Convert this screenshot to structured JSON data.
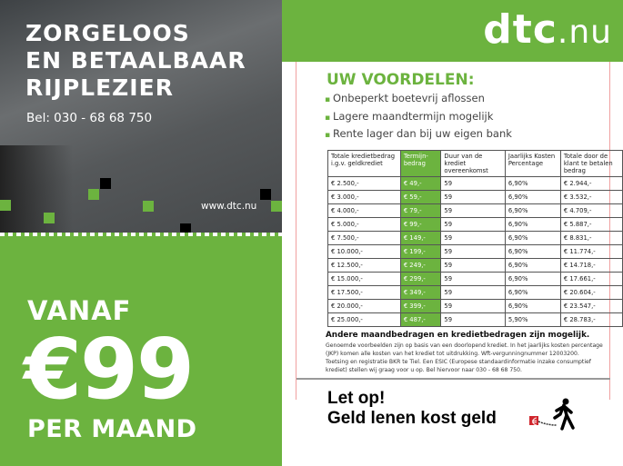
{
  "left": {
    "headline": [
      "ZORGELOOS",
      "EN BETAALBAAR",
      "RIJPLEZIER"
    ],
    "phone": "Bel: 030 - 68 68 750",
    "website": "www.dtc.nu",
    "promo": {
      "from": "VANAF",
      "price": "€99",
      "per": "PER MAAND"
    }
  },
  "right": {
    "logo": {
      "main": "dtc",
      "suffix": ".nu"
    },
    "benefits_title": "UW VOORDELEN:",
    "benefits": [
      "Onbeperkt boetevrij aflossen",
      "Lagere maandtermijn mogelijk",
      "Rente lager dan bij uw eigen bank"
    ],
    "table": {
      "headers": [
        "Totale kredietbedrag i.g.v. geldkrediet",
        "Termijn-bedrag",
        "Duur van de krediet overeenkomst",
        "Jaarlijks Kosten Percentage",
        "Totale door de klant te betalen bedrag"
      ],
      "rows": [
        [
          "€  2.500,-",
          "€  49,-",
          "59",
          "6,90%",
          "€  2.944,-"
        ],
        [
          "€  3.000,-",
          "€  59,-",
          "59",
          "6,90%",
          "€  3.532,-"
        ],
        [
          "€  4.000,-",
          "€  79,-",
          "59",
          "6,90%",
          "€  4.709,-"
        ],
        [
          "€  5.000,-",
          "€  99,-",
          "59",
          "6,90%",
          "€  5.887,-"
        ],
        [
          "€  7.500,-",
          "€ 149,-",
          "59",
          "6,90%",
          "€  8.831,-"
        ],
        [
          "€ 10.000,-",
          "€ 199,-",
          "59",
          "6,90%",
          "€ 11.774,-"
        ],
        [
          "€ 12.500,-",
          "€ 249,-",
          "59",
          "6,90%",
          "€ 14.718,-"
        ],
        [
          "€ 15.000,-",
          "€ 299,-",
          "59",
          "6,90%",
          "€ 17.661,-"
        ],
        [
          "€ 17.500,-",
          "€ 349,-",
          "59",
          "6,90%",
          "€ 20.604,-"
        ],
        [
          "€ 20.000,-",
          "€ 399,-",
          "59",
          "6,90%",
          "€ 23.547,-"
        ],
        [
          "€ 25.000,-",
          "€ 487,-",
          "59",
          "5,90%",
          "€ 28.783,-"
        ]
      ]
    },
    "other_amounts": "Andere maandbedragen en kredietbedragen zijn mogelijk.",
    "fine_print": "Genoemde voorbeelden zijn op basis van een doorlopend krediet. In het jaarlijks kosten percentage (JKP) komen alle kosten van het krediet tot uitdrukking. Wft-vergunningnummer 12003200. Toetsing en registratie BKR te Tiel. Een ESIC (Europese standaardinformatie inzake consumptief krediet) stellen wij graag voor u op. Bel hiervoor naar 030 - 68 68 750.",
    "warning": [
      "Let op!",
      "Geld lenen kost geld"
    ],
    "warning_icon": "person-chained-to-euro-icon"
  },
  "colors": {
    "brand_green": "#6cb33f"
  }
}
